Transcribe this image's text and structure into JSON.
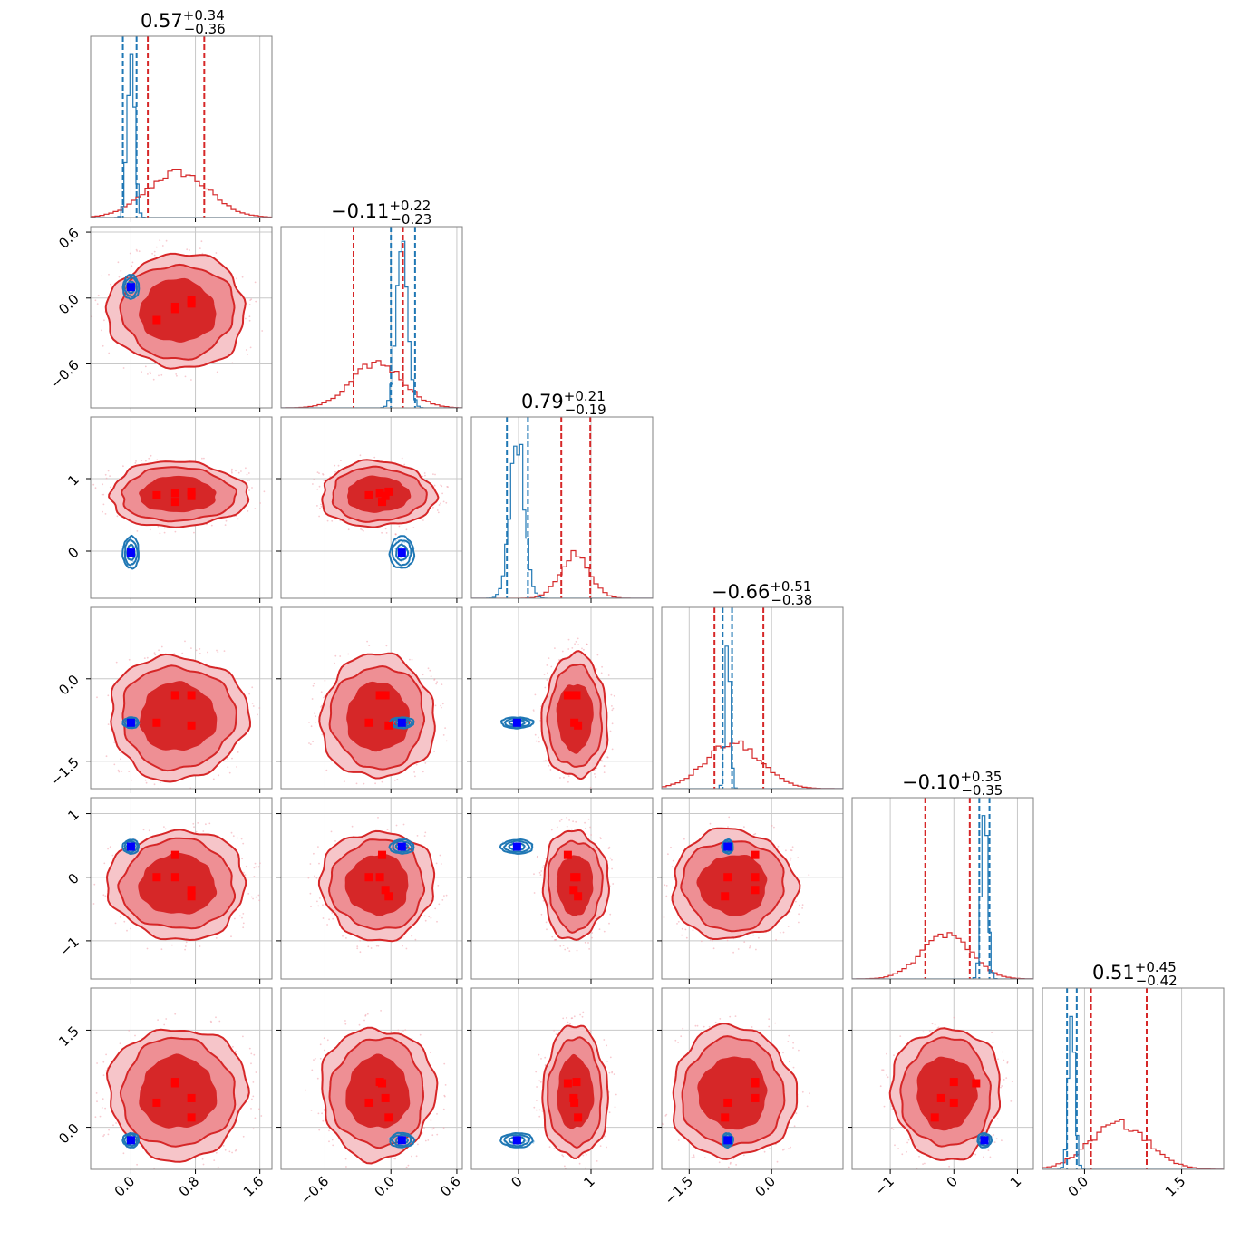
{
  "chart_data": {
    "type": "corner",
    "n_params": 6,
    "series": [
      {
        "name": "",
        "color": "#1f77b4"
      },
      {
        "name": "",
        "color": "#d62728"
      }
    ],
    "titles": [
      {
        "main": "0.57",
        "sup": "+0.34",
        "sub": "−0.36"
      },
      {
        "main": "−0.11",
        "sup": "+0.22",
        "sub": "−0.23"
      },
      {
        "main": "0.79",
        "sup": "+0.21",
        "sub": "−0.19"
      },
      {
        "main": "−0.66",
        "sup": "+0.51",
        "sub": "−0.38"
      },
      {
        "main": "−0.10",
        "sup": "+0.35",
        "sub": "−0.35"
      },
      {
        "main": "0.51",
        "sup": "+0.45",
        "sub": "−0.42"
      }
    ],
    "ranges": [
      [
        -0.5,
        1.75
      ],
      [
        -1.0,
        0.65
      ],
      [
        -0.65,
        1.85
      ],
      [
        -2.0,
        1.3
      ],
      [
        -1.6,
        1.25
      ],
      [
        -0.65,
        2.15
      ]
    ],
    "ticks": [
      {
        "values": [
          0.0,
          0.8,
          1.6
        ],
        "labels": [
          "0.0",
          "0.8",
          "1.6"
        ]
      },
      {
        "values": [
          -0.6,
          0.0,
          0.6
        ],
        "labels": [
          "−0.6",
          "0.0",
          "0.6"
        ]
      },
      {
        "values": [
          0,
          1
        ],
        "labels": [
          "0",
          "1"
        ]
      },
      {
        "values": [
          -1.5,
          0.0
        ],
        "labels": [
          "−1.5",
          "0.0"
        ]
      },
      {
        "values": [
          -1,
          0,
          1
        ],
        "labels": [
          "−1",
          "0",
          "1"
        ]
      },
      {
        "values": [
          0.0,
          1.5
        ],
        "labels": [
          "0.0",
          "1.5"
        ]
      }
    ],
    "grid": true,
    "blue": {
      "means": [
        0.0,
        0.1,
        -0.02,
        -0.8,
        0.48,
        -0.2
      ],
      "sds": [
        0.045,
        0.05,
        0.1,
        0.045,
        0.05,
        0.05
      ],
      "quantiles": [
        [
          -0.1,
          0.07
        ],
        [
          0.0,
          0.22
        ],
        [
          -0.16,
          0.13
        ],
        [
          -0.89,
          -0.72
        ],
        [
          0.4,
          0.56
        ],
        [
          -0.27,
          -0.12
        ]
      ],
      "markers": [
        [
          0.0,
          0.1,
          -0.02,
          -0.8,
          0.48,
          -0.2
        ]
      ]
    },
    "red": {
      "means": [
        0.58,
        -0.12,
        0.78,
        -0.7,
        -0.12,
        0.53
      ],
      "sds": [
        0.38,
        0.23,
        0.2,
        0.5,
        0.38,
        0.45
      ],
      "quantiles": [
        [
          0.21,
          0.91
        ],
        [
          -0.34,
          0.11
        ],
        [
          0.59,
          0.99
        ],
        [
          -1.04,
          -0.15
        ],
        [
          -0.45,
          0.25
        ],
        [
          0.1,
          0.96
        ]
      ],
      "markers": [
        [
          0.55,
          -0.08,
          0.68,
          -0.3,
          0.35,
          0.68
        ],
        [
          0.32,
          -0.2,
          0.77,
          -0.8,
          0.0,
          0.38
        ],
        [
          0.75,
          -0.02,
          0.82,
          -0.85,
          -0.3,
          0.15
        ],
        [
          0.75,
          -0.05,
          0.76,
          -0.3,
          -0.2,
          0.45
        ],
        [
          0.55,
          -0.1,
          0.8,
          -0.3,
          0.0,
          0.7
        ]
      ]
    }
  }
}
